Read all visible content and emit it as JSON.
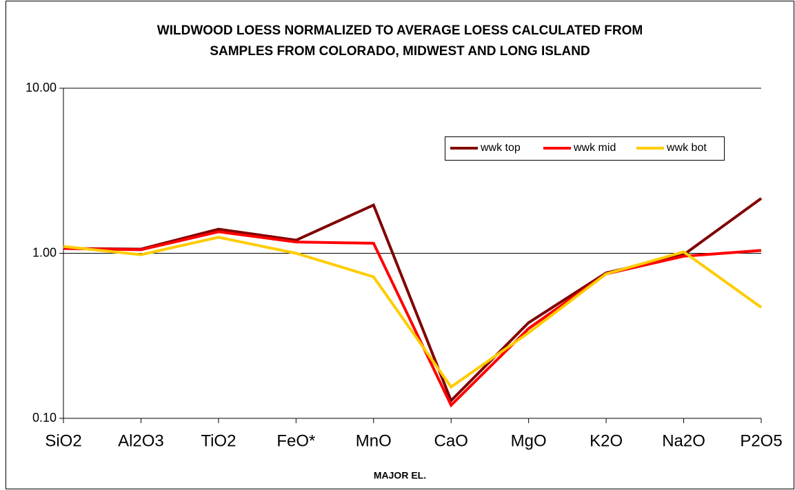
{
  "chart_data": {
    "type": "line",
    "title": [
      "WILDWOOD LOESS NORMALIZED TO AVERAGE LOESS CALCULATED FROM",
      "SAMPLES FROM COLORADO, MIDWEST AND LONG ISLAND"
    ],
    "x_label": "MAJOR EL.",
    "categories": [
      "SiO2",
      "Al2O3",
      "TiO2",
      "FeO*",
      "MnO",
      "CaO",
      "MgO",
      "K2O",
      "Na2O",
      "P2O5"
    ],
    "series": [
      {
        "name": "wwk top",
        "color": "#800000",
        "values": [
          1.07,
          1.06,
          1.4,
          1.2,
          1.96,
          0.128,
          0.38,
          0.76,
          0.98,
          2.15
        ]
      },
      {
        "name": "wwk mid",
        "color": "#ff0000",
        "values": [
          1.07,
          1.05,
          1.35,
          1.17,
          1.15,
          0.12,
          0.35,
          0.75,
          0.96,
          1.04
        ]
      },
      {
        "name": "wwk bot",
        "color": "#ffcc00",
        "values": [
          1.1,
          0.98,
          1.25,
          1.0,
          0.72,
          0.155,
          0.33,
          0.75,
          1.02,
          0.47
        ]
      }
    ],
    "ylim": [
      0.1,
      10
    ],
    "yticks": [
      {
        "value": 0.1,
        "label": "0.10"
      },
      {
        "value": 1,
        "label": "1.00"
      },
      {
        "value": 10,
        "label": "10.00"
      }
    ],
    "log_y": true,
    "grid": true,
    "legend": "upper-right"
  }
}
